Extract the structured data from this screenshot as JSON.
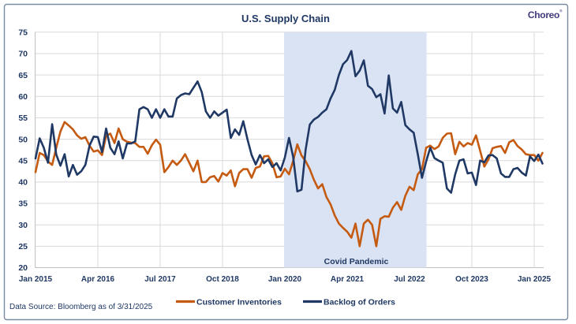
{
  "header": {
    "title": "U.S. Supply Chain",
    "logo": "Choreo",
    "logo_mark": "®"
  },
  "footer": {
    "source_note": "Data Source: Bloomberg as of 3/31/2025"
  },
  "legend": [
    {
      "label": "Customer Inventories",
      "series": "customer_inventories"
    },
    {
      "label": "Backlog of Orders",
      "series": "backlog_of_orders"
    }
  ],
  "colors": {
    "customer_inventories": "#c55a11",
    "backlog_of_orders": "#1f3864",
    "text": "#1f3864",
    "band_fill": "#dae3f3",
    "gridline": "#d9d9d9",
    "axis_line": "#bfbfbf",
    "border": "#7b8b9e",
    "logo_text": "#3f3a7c",
    "background": "#ffffff"
  },
  "chart_data": {
    "type": "line",
    "title": "U.S. Supply Chain",
    "x_start": "Jan 2015",
    "x_end": "Mar 2025",
    "x_frequency": "monthly",
    "ylim": [
      20,
      75
    ],
    "y_tick_step": 5,
    "grid": true,
    "legend_position": "bottom",
    "x_ticks": [
      {
        "month_index": 0,
        "label": "Jan 2015"
      },
      {
        "month_index": 15,
        "label": "Apr 2016"
      },
      {
        "month_index": 30,
        "label": "Jul 2017"
      },
      {
        "month_index": 45,
        "label": "Oct 2018"
      },
      {
        "month_index": 60,
        "label": "Jan 2020"
      },
      {
        "month_index": 75,
        "label": "Apr 2021"
      },
      {
        "month_index": 90,
        "label": "Jul 2022"
      },
      {
        "month_index": 105,
        "label": "Oct 2023"
      },
      {
        "month_index": 120,
        "label": "Jan 2025"
      }
    ],
    "covid_band": {
      "label": "Covid Pandemic",
      "start_month_index": 59.8,
      "end_month_index": 94.1
    },
    "series": [
      {
        "name": "Customer Inventories",
        "color_key": "customer_inventories",
        "values": [
          42.3,
          46.8,
          46.3,
          44.8,
          44.0,
          48.0,
          51.8,
          54.0,
          53.2,
          52.3,
          50.9,
          50.1,
          50.5,
          48.5,
          47.1,
          47.4,
          46.3,
          50.8,
          51.3,
          49.1,
          52.5,
          50.0,
          49.4,
          49.2,
          49.1,
          48.2,
          48.2,
          46.6,
          48.6,
          49.9,
          48.7,
          42.3,
          43.5,
          45.0,
          44.0,
          45.0,
          46.5,
          44.5,
          42.5,
          45.0,
          40.0,
          40.0,
          41.1,
          41.4,
          40.1,
          42.1,
          41.5,
          42.7,
          39.0,
          42.1,
          43.0,
          43.0,
          41.0,
          43.3,
          43.6,
          46.0,
          46.1,
          44.4,
          41.1,
          41.3,
          43.1,
          41.8,
          44.9,
          48.8,
          46.2,
          44.9,
          43.0,
          40.5,
          38.5,
          39.5,
          36.5,
          34.8,
          32.2,
          30.3,
          29.3,
          28.4,
          27.0,
          30.3,
          25.0,
          30.3,
          31.2,
          30.0,
          25.0,
          31.4,
          32.0,
          31.9,
          34.0,
          35.3,
          33.5,
          36.8,
          38.9,
          38.1,
          41.8,
          43.0,
          48.0,
          48.5,
          47.7,
          48.3,
          50.3,
          51.3,
          51.4,
          46.5,
          49.4,
          48.3,
          49.1,
          48.7,
          50.9,
          47.3,
          43.6,
          45.3,
          47.9,
          48.2,
          48.4,
          46.8,
          49.3,
          49.8,
          48.4,
          47.6,
          46.5,
          46.3,
          46.3,
          45.0,
          46.8
        ]
      },
      {
        "name": "Backlog of Orders",
        "color_key": "backlog_of_orders",
        "values": [
          45.5,
          50.2,
          48.0,
          44.5,
          53.5,
          46.4,
          43.8,
          46.5,
          41.3,
          44.0,
          41.7,
          42.5,
          44.0,
          48.5,
          50.6,
          50.5,
          47.0,
          52.5,
          48.0,
          46.5,
          49.5,
          45.5,
          49.0,
          49.0,
          49.5,
          57.0,
          57.5,
          57.0,
          55.0,
          57.0,
          55.0,
          57.0,
          55.3,
          55.3,
          59.5,
          60.3,
          60.7,
          60.5,
          62.0,
          63.5,
          61.0,
          56.5,
          55.0,
          56.5,
          55.5,
          56.2,
          56.9,
          50.3,
          52.3,
          51.0,
          54.2,
          50.0,
          46.3,
          44.1,
          46.3,
          44.4,
          45.3,
          43.5,
          44.4,
          42.7,
          45.7,
          50.3,
          45.9,
          37.8,
          38.2,
          47.5,
          53.4,
          54.6,
          55.2,
          56.2,
          57.0,
          59.5,
          61.5,
          65.0,
          67.5,
          68.5,
          70.6,
          64.7,
          66.0,
          68.4,
          62.5,
          61.7,
          59.8,
          60.5,
          56.0,
          64.9,
          57.2,
          56.2,
          58.7,
          53.3,
          52.3,
          51.5,
          46.5,
          41.0,
          44.8,
          48.0,
          45.6,
          45.0,
          44.5,
          38.5,
          37.5,
          41.8,
          45.0,
          45.3,
          42.0,
          42.2,
          39.3,
          45.0,
          44.6,
          46.2,
          46.3,
          45.5,
          42.0,
          41.2,
          41.2,
          43.0,
          43.3,
          42.2,
          41.5,
          46.0,
          44.9,
          46.4,
          44.3
        ]
      }
    ]
  }
}
